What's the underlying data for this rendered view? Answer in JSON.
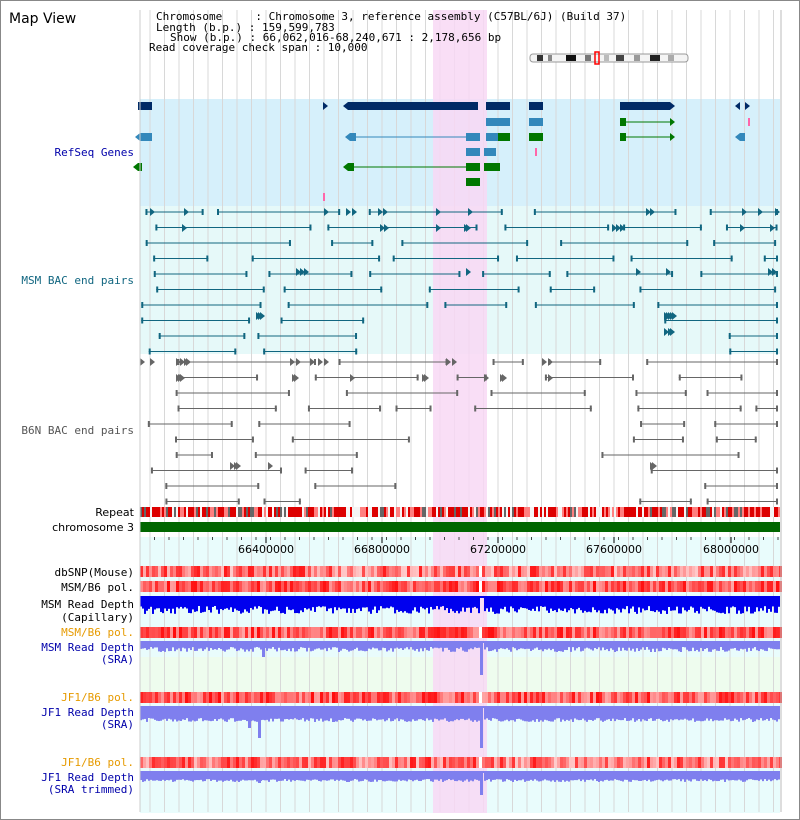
{
  "title": "Map View",
  "header": {
    "lines": [
      "Chromosome     : Chromosome 3, reference assembly (C57BL/6J) (Build 37)",
      "Length (b.p.) : 159,599,783",
      "Show (b.p.) : 66,062,016-68,240,671 : 2,178,656 bp",
      "Read coverage check span : 10,000"
    ]
  },
  "axis": {
    "ticks": [
      "66400000",
      "66800000",
      "67200000",
      "67600000",
      "68000000"
    ]
  },
  "tracks": {
    "refseq_label": "RefSeq Genes",
    "msm_bac_label": "MSM BAC end pairs",
    "b6n_bac_label": "B6N BAC end pairs",
    "repeat_label": "Repeat",
    "chromosome_label": "chromosome 3",
    "dbsnp_label": "dbSNP(Mouse)",
    "msm_b6_pol_label": "MSM/B6 pol.",
    "msm_depth_cap_label_1": "MSM Read Depth",
    "msm_depth_cap_label_2": "(Capillary)",
    "msm_b6_pol2_label": "MSM/B6 pol.",
    "msm_depth_sra_label_1": "MSM Read Depth",
    "msm_depth_sra_label_2": "(SRA)",
    "jf1_b6_pol_label": "JF1/B6 pol.",
    "jf1_depth_sra_label_1": "JF1 Read Depth",
    "jf1_depth_sra_label_2": "(SRA)",
    "jf1_b6_pol2_label": "JF1/B6 pol.",
    "jf1_depth_trim_label_1": "JF1 Read Depth",
    "jf1_depth_trim_label_2": "(SRA trimmed)"
  },
  "colors": {
    "refseq_bg": "#d6f0fb",
    "bac_bg": "#e6f9f9",
    "highlight": "#f8d8f4",
    "gene_dark": "#002a66",
    "gene_mid": "#3388bb",
    "gene_green": "#007700",
    "msm_bac": "#116680",
    "b6n_bac": "#666666",
    "depth_blue": "#0000ee",
    "depth_light": "#7f7fee",
    "chromosome": "#006600",
    "label_blue": "#0000aa",
    "label_orange": "#e69a00"
  }
}
